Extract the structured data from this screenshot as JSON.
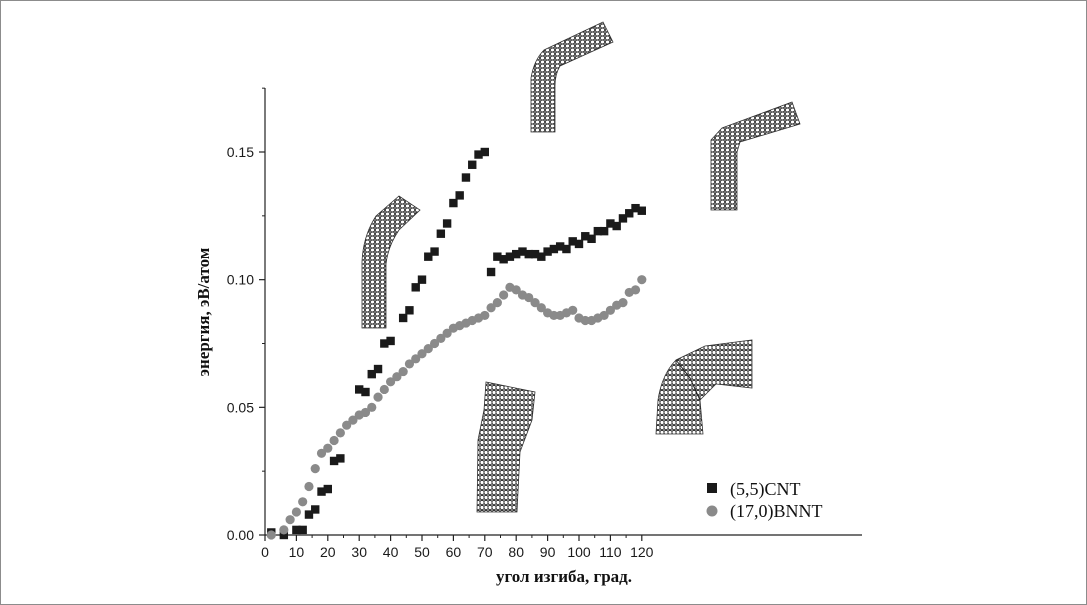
{
  "chart_data": {
    "type": "scatter",
    "xlabel": "угол изгиба, град.",
    "ylabel": "энергия, эВ/атом",
    "xlim": [
      0,
      125
    ],
    "ylim": [
      0,
      0.175
    ],
    "xticks": [
      0,
      10,
      20,
      30,
      40,
      50,
      60,
      70,
      80,
      90,
      100,
      110,
      120
    ],
    "yticks": [
      0.0,
      0.05,
      0.1,
      0.15
    ],
    "ytick_labels": [
      "0.00",
      "0.05",
      "0.10",
      "0.15"
    ],
    "legend_position": "bottom-right",
    "grid": false,
    "series": [
      {
        "name": "(5,5)CNT",
        "marker": "square",
        "color": "#1a1a1a",
        "x": [
          2,
          6,
          10,
          12,
          14,
          16,
          18,
          20,
          22,
          24,
          30,
          32,
          34,
          36,
          38,
          40,
          44,
          46,
          48,
          50,
          52,
          54,
          56,
          58,
          60,
          62,
          64,
          66,
          68,
          70,
          72,
          74,
          76,
          78,
          80,
          82,
          84,
          86,
          88,
          90,
          92,
          94,
          96,
          98,
          100,
          102,
          104,
          106,
          108,
          110,
          112,
          114,
          116,
          118,
          120
        ],
        "y": [
          0.001,
          0.0,
          0.002,
          0.002,
          0.008,
          0.01,
          0.017,
          0.018,
          0.029,
          0.03,
          0.057,
          0.056,
          0.063,
          0.065,
          0.075,
          0.076,
          0.085,
          0.088,
          0.097,
          0.1,
          0.109,
          0.111,
          0.118,
          0.122,
          0.13,
          0.133,
          0.14,
          0.145,
          0.149,
          0.15,
          0.103,
          0.109,
          0.108,
          0.109,
          0.11,
          0.111,
          0.11,
          0.11,
          0.109,
          0.111,
          0.112,
          0.113,
          0.112,
          0.115,
          0.114,
          0.117,
          0.116,
          0.119,
          0.119,
          0.122,
          0.121,
          0.124,
          0.126,
          0.128,
          0.127
        ]
      },
      {
        "name": "(17,0)BNNT",
        "marker": "circle",
        "color": "#8a8a8a",
        "x": [
          2,
          6,
          8,
          10,
          12,
          14,
          16,
          18,
          20,
          22,
          24,
          26,
          28,
          30,
          32,
          34,
          36,
          38,
          40,
          42,
          44,
          46,
          48,
          50,
          52,
          54,
          56,
          58,
          60,
          62,
          64,
          66,
          68,
          70,
          72,
          74,
          76,
          78,
          80,
          82,
          84,
          86,
          88,
          90,
          92,
          94,
          96,
          98,
          100,
          102,
          104,
          106,
          108,
          110,
          112,
          114,
          116,
          118,
          120
        ],
        "y": [
          0.0,
          0.002,
          0.006,
          0.009,
          0.013,
          0.019,
          0.026,
          0.032,
          0.034,
          0.037,
          0.04,
          0.043,
          0.045,
          0.047,
          0.048,
          0.05,
          0.054,
          0.057,
          0.06,
          0.062,
          0.064,
          0.067,
          0.069,
          0.071,
          0.073,
          0.075,
          0.077,
          0.079,
          0.081,
          0.082,
          0.083,
          0.084,
          0.085,
          0.086,
          0.089,
          0.091,
          0.094,
          0.097,
          0.096,
          0.094,
          0.093,
          0.091,
          0.089,
          0.087,
          0.086,
          0.086,
          0.087,
          0.088,
          0.085,
          0.084,
          0.084,
          0.085,
          0.086,
          0.088,
          0.09,
          0.091,
          0.095,
          0.096,
          0.1
        ]
      }
    ]
  }
}
